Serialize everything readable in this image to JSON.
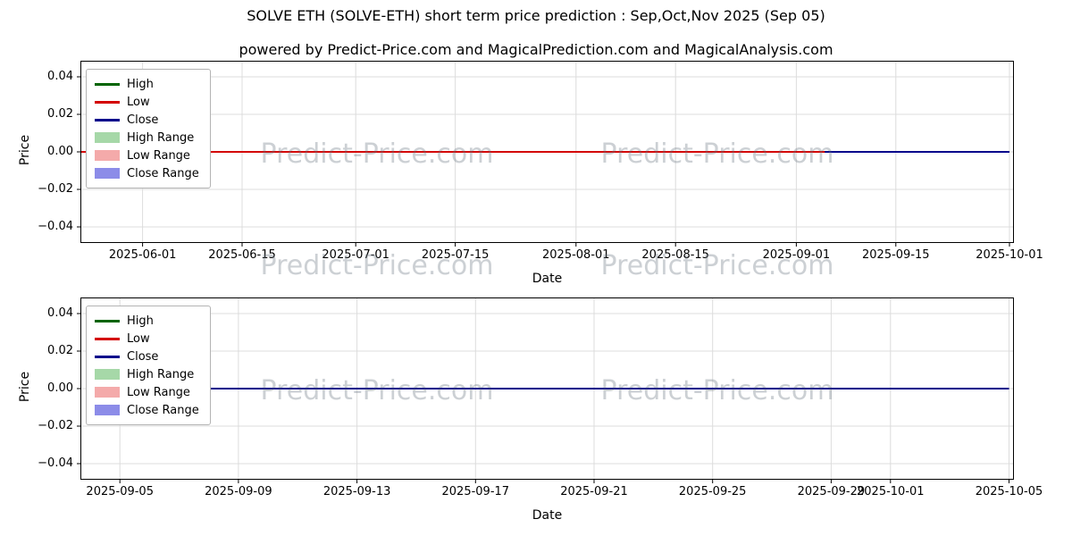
{
  "title": "SOLVE ETH (SOLVE-ETH) short term price prediction : Sep,Oct,Nov 2025 (Sep 05)",
  "subtitle": "powered by Predict-Price.com and MagicalPrediction.com and MagicalAnalysis.com",
  "watermark": "Predict-Price.com",
  "colors": {
    "high": "#006400",
    "low": "#d40000",
    "close": "#00008b",
    "high_range": "#a6d8a8",
    "low_range": "#f4aaaa",
    "close_range": "#8c8ce8"
  },
  "chart_data": [
    {
      "type": "line",
      "xlabel": "Date",
      "ylabel": "Price",
      "ylim": [
        -0.0486,
        0.0486
      ],
      "yticks": [
        {
          "v": 0.04,
          "label": "0.04"
        },
        {
          "v": 0.02,
          "label": "0.02"
        },
        {
          "v": 0.0,
          "label": "0.00"
        },
        {
          "v": -0.02,
          "label": "−0.02"
        },
        {
          "v": -0.04,
          "label": "−0.04"
        }
      ],
      "xlim": [
        "2025-05-23T06:00:00",
        "2025-10-01T15:00:00"
      ],
      "xticks": [
        "2025-06-01",
        "2025-06-15",
        "2025-07-01",
        "2025-07-15",
        "2025-08-01",
        "2025-08-15",
        "2025-09-01",
        "2025-09-15",
        "2025-10-01"
      ],
      "series": [
        {
          "name": "Close",
          "color_key": "close",
          "x": [
            "2025-05-23T06:00:00",
            "2025-10-01"
          ],
          "y": [
            0.0,
            0.0
          ]
        },
        {
          "name": "High",
          "color_key": "high",
          "x": [
            "2025-05-23T06:00:00",
            "2025-09-05"
          ],
          "y": [
            0.0,
            0.0
          ]
        },
        {
          "name": "Low",
          "color_key": "low",
          "x": [
            "2025-05-23T06:00:00",
            "2025-09-05"
          ],
          "y": [
            0.0,
            0.0
          ]
        }
      ],
      "legend": [
        {
          "label": "High",
          "type": "line",
          "color_key": "high"
        },
        {
          "label": "Low",
          "type": "line",
          "color_key": "low"
        },
        {
          "label": "Close",
          "type": "line",
          "color_key": "close"
        },
        {
          "label": "High Range",
          "type": "patch",
          "color_key": "high_range"
        },
        {
          "label": "Low Range",
          "type": "patch",
          "color_key": "low_range"
        },
        {
          "label": "Close Range",
          "type": "patch",
          "color_key": "close_range"
        }
      ]
    },
    {
      "type": "line",
      "xlabel": "Date",
      "ylabel": "Price",
      "ylim": [
        -0.0486,
        0.0486
      ],
      "yticks": [
        {
          "v": 0.04,
          "label": "0.04"
        },
        {
          "v": 0.02,
          "label": "0.02"
        },
        {
          "v": 0.0,
          "label": "0.00"
        },
        {
          "v": -0.02,
          "label": "−0.02"
        },
        {
          "v": -0.04,
          "label": "−0.04"
        }
      ],
      "xlim": [
        "2025-09-03T16:00:00",
        "2025-10-05T04:00:00"
      ],
      "xticks": [
        "2025-09-05",
        "2025-09-09",
        "2025-09-13",
        "2025-09-17",
        "2025-09-21",
        "2025-09-25",
        "2025-09-29",
        "2025-10-01",
        "2025-10-05"
      ],
      "series": [
        {
          "name": "Close",
          "color_key": "close",
          "x": [
            "2025-09-04",
            "2025-10-05"
          ],
          "y": [
            0.0,
            0.0
          ]
        }
      ],
      "legend": [
        {
          "label": "High",
          "type": "line",
          "color_key": "high"
        },
        {
          "label": "Low",
          "type": "line",
          "color_key": "low"
        },
        {
          "label": "Close",
          "type": "line",
          "color_key": "close"
        },
        {
          "label": "High Range",
          "type": "patch",
          "color_key": "high_range"
        },
        {
          "label": "Low Range",
          "type": "patch",
          "color_key": "low_range"
        },
        {
          "label": "Close Range",
          "type": "patch",
          "color_key": "close_range"
        }
      ]
    }
  ]
}
